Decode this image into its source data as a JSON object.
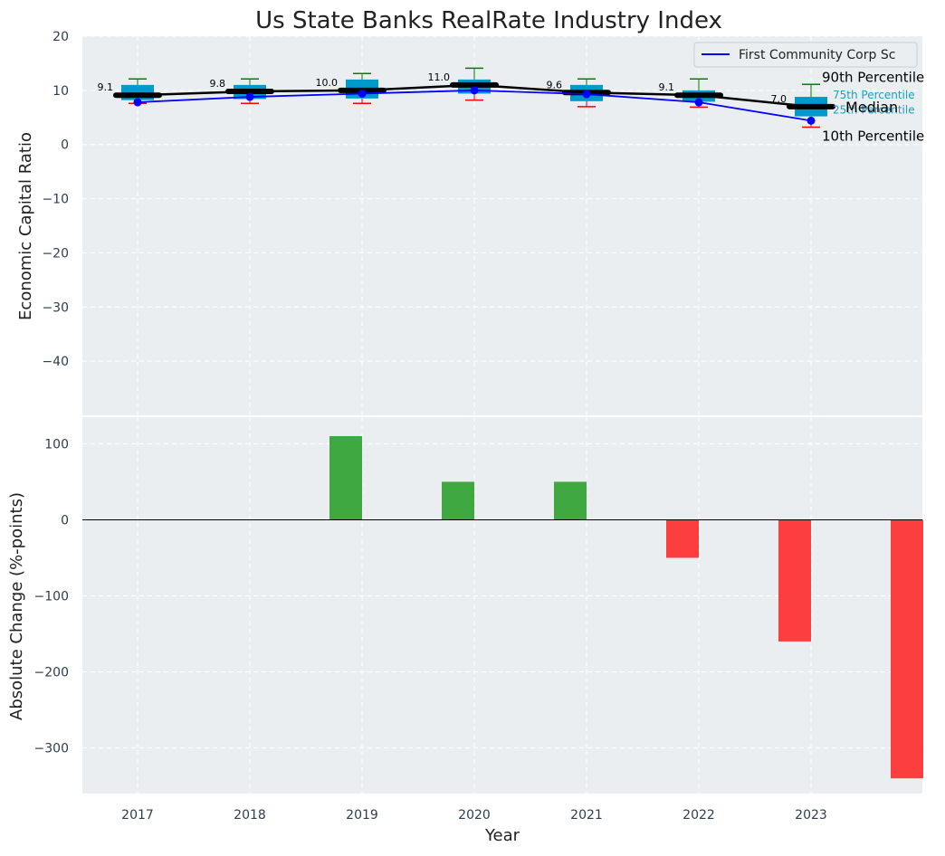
{
  "chart_data": {
    "title": "Us State Banks RealRate Industry Index",
    "xlabel": "Year",
    "categories": [
      "2017",
      "2018",
      "2019",
      "2020",
      "2021",
      "2022",
      "2023"
    ],
    "colors": {
      "background": "#eaeef0",
      "box": "#0099cc",
      "median": "#000000",
      "company": "#0000ff",
      "whisker_high": "#008000",
      "whisker_low": "#ff0000",
      "positive": "#2ca02c",
      "negative": "#ff2a2a",
      "ann_quartile": "#17a2c8"
    },
    "top": {
      "type": "box",
      "ylabel": "Economic Capital Ratio",
      "ylim": [
        -50,
        20
      ],
      "yticks": [
        20,
        10,
        0,
        -10,
        -20,
        -30,
        -40
      ],
      "grid": true,
      "legend": {
        "placement": "top-right",
        "label": "First Community Corp Sc"
      },
      "p10": [
        7.6,
        7.6,
        7.6,
        8.2,
        7.0,
        6.9,
        3.2
      ],
      "p25": [
        8.2,
        8.4,
        8.5,
        9.4,
        8.0,
        7.9,
        5.2
      ],
      "median": [
        9.1,
        9.8,
        10.0,
        11.0,
        9.6,
        9.1,
        7.0
      ],
      "p75": [
        11.0,
        11.0,
        12.0,
        12.0,
        11.0,
        10.0,
        8.8
      ],
      "p90": [
        12.1,
        12.1,
        13.1,
        14.1,
        12.1,
        12.1,
        11.1
      ],
      "median_labels": [
        "9.1",
        "9.8",
        "10.0",
        "11.0",
        "9.6",
        "9.1",
        "7.0"
      ],
      "company_values": [
        7.8,
        8.8,
        9.4,
        10.0,
        9.3,
        7.8,
        4.4
      ],
      "annotations": {
        "p90": "90th Percentile",
        "p75": "75th Percentile",
        "median": "Median",
        "p25": "25th Percentile",
        "p10": "10th Percentile"
      }
    },
    "bottom": {
      "type": "bar",
      "ylabel": "Absolute Change (%-points)",
      "ylim": [
        -360,
        135
      ],
      "yticks": [
        100,
        0,
        -100,
        -200,
        -300
      ],
      "grid": true,
      "values": [
        0,
        110,
        50,
        50,
        -50,
        -160,
        -340
      ]
    }
  }
}
